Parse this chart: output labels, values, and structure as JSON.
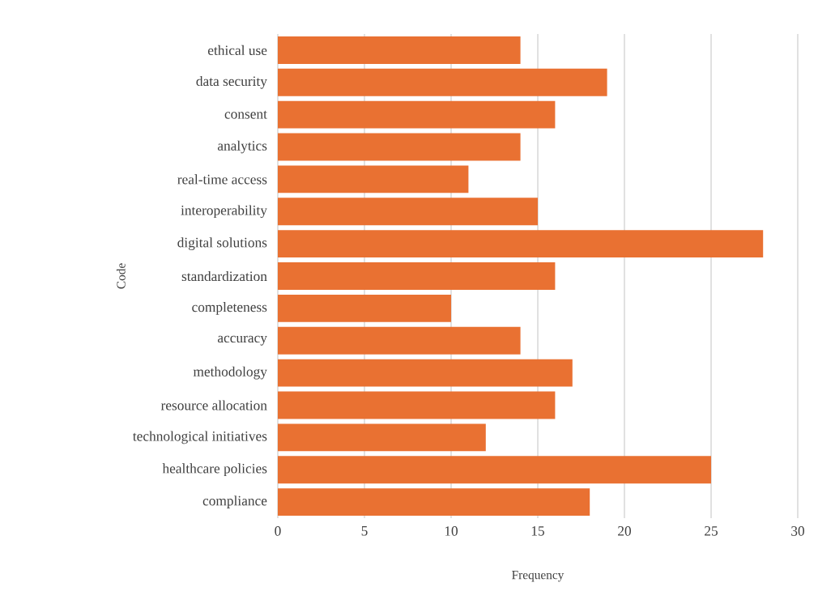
{
  "chart_data": {
    "type": "bar",
    "orientation": "horizontal",
    "categories": [
      "ethical use",
      "data security",
      "consent",
      "analytics",
      "real-time access",
      "interoperability",
      "digital solutions",
      "standardization",
      "completeness",
      "accuracy",
      "methodology",
      "resource allocation",
      "technological initiatives",
      "healthcare policies",
      "compliance"
    ],
    "values": [
      14,
      19,
      16,
      14,
      11,
      15,
      28,
      16,
      10,
      14,
      17,
      16,
      12,
      25,
      18
    ],
    "color": "#e97132",
    "xlim": [
      0,
      30
    ],
    "xticks": [
      0,
      5,
      10,
      15,
      20,
      25,
      30
    ],
    "grid": "x",
    "xlabel": "Frequency",
    "ylabel": "Code"
  }
}
